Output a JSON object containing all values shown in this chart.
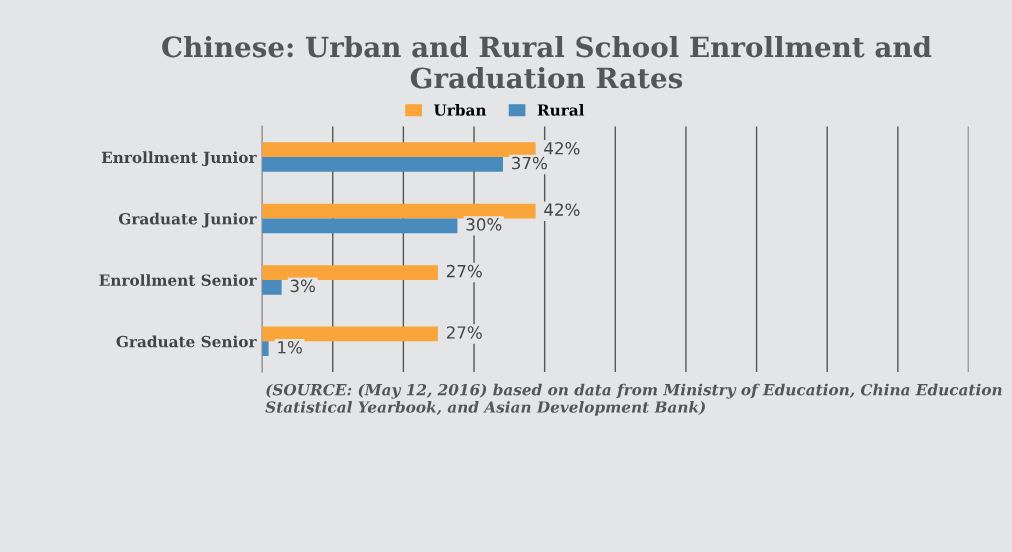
{
  "chart_data": {
    "type": "bar",
    "orientation": "horizontal",
    "title": "Chinese: Urban and Rural School Enrollment and Graduation Rates",
    "categories": [
      "Enrollment Junior",
      "Graduate Junior",
      "Enrollment Senior",
      "Graduate Senior"
    ],
    "series": [
      {
        "name": "Urban",
        "color": "#f9a53a",
        "values": [
          42,
          42,
          27,
          27
        ],
        "value_labels": [
          "42%",
          "42%",
          "27%",
          "27%"
        ]
      },
      {
        "name": "Rural",
        "color": "#4a8bbd",
        "values": [
          37,
          30,
          3,
          1
        ],
        "value_labels": [
          "37%",
          "30%",
          "3%",
          "1%"
        ]
      }
    ],
    "xlim": [
      0,
      108.5
    ],
    "xticks": [
      {
        "value": 10.85,
        "label": null
      },
      {
        "value": 21.7,
        "label": null
      },
      {
        "value": 32.55,
        "label": null
      },
      {
        "value": 43.4,
        "label": null
      },
      {
        "value": 54.25,
        "label": null
      },
      {
        "value": 65.1,
        "label": null
      },
      {
        "value": 75.95,
        "label": null
      },
      {
        "value": 86.8,
        "label": null
      },
      {
        "value": 97.65,
        "label": null
      },
      {
        "value": 108.5,
        "label": null
      }
    ],
    "grid": "x",
    "legend": "top",
    "annotations": [
      "(SOURCE: (May 12, 2016) based on data from Ministry of Education, China Education Statistical Yearbook, and Asian Development Bank)"
    ]
  }
}
